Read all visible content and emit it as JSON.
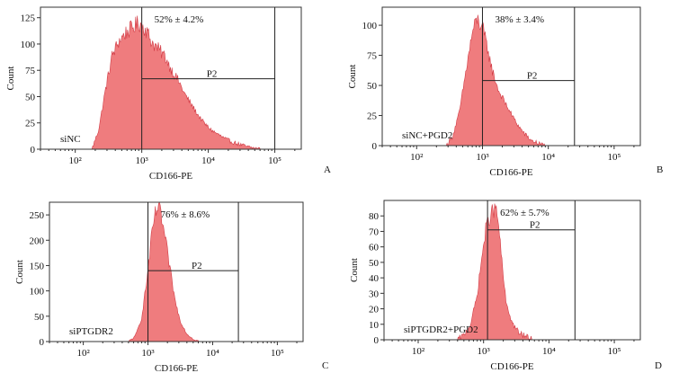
{
  "chart_data": [
    {
      "type": "histogram",
      "panel_label": "A",
      "sample": "siNC",
      "xlabel": "CD166-PE",
      "ylabel": "Count",
      "x_scale": "log",
      "xlim": [
        30,
        250000
      ],
      "ylim": [
        0,
        135
      ],
      "yticks": [
        "0",
        "25",
        "50",
        "75",
        "100",
        "125"
      ],
      "ytick_values": [
        0,
        25,
        50,
        75,
        100,
        125
      ],
      "xticks": [
        "10²",
        "10³",
        "10⁴",
        "10⁵"
      ],
      "xtick_values": [
        100,
        1000,
        10000,
        100000
      ],
      "gate": {
        "name": "P2",
        "from": 1000,
        "to": 100000,
        "bar_count": 67
      },
      "annotation": "52% ± 4.2%",
      "color": "#ef7c7e",
      "series": [
        {
          "log_x": 2.25,
          "count": 0
        },
        {
          "log_x": 2.35,
          "count": 18
        },
        {
          "log_x": 2.45,
          "count": 55
        },
        {
          "log_x": 2.55,
          "count": 88
        },
        {
          "log_x": 2.65,
          "count": 102
        },
        {
          "log_x": 2.75,
          "count": 110
        },
        {
          "log_x": 2.85,
          "count": 115
        },
        {
          "log_x": 2.95,
          "count": 120
        },
        {
          "log_x": 3.05,
          "count": 115
        },
        {
          "log_x": 3.15,
          "count": 102
        },
        {
          "log_x": 3.25,
          "count": 95
        },
        {
          "log_x": 3.35,
          "count": 88
        },
        {
          "log_x": 3.45,
          "count": 75
        },
        {
          "log_x": 3.55,
          "count": 65
        },
        {
          "log_x": 3.65,
          "count": 52
        },
        {
          "log_x": 3.75,
          "count": 42
        },
        {
          "log_x": 3.85,
          "count": 32
        },
        {
          "log_x": 3.95,
          "count": 24
        },
        {
          "log_x": 4.05,
          "count": 18
        },
        {
          "log_x": 4.15,
          "count": 14
        },
        {
          "log_x": 4.25,
          "count": 10
        },
        {
          "log_x": 4.35,
          "count": 7
        },
        {
          "log_x": 4.45,
          "count": 5
        },
        {
          "log_x": 4.6,
          "count": 2
        },
        {
          "log_x": 4.8,
          "count": 0
        }
      ]
    },
    {
      "type": "histogram",
      "panel_label": "B",
      "sample": "siNC+PGD2",
      "xlabel": "CD166-PE",
      "ylabel": "Count",
      "x_scale": "log",
      "xlim": [
        30,
        250000
      ],
      "ylim": [
        0,
        115
      ],
      "yticks": [
        "0",
        "25",
        "50",
        "75",
        "100"
      ],
      "ytick_values": [
        0,
        25,
        50,
        75,
        100
      ],
      "xticks": [
        "10²",
        "10³",
        "10⁴",
        "10⁵"
      ],
      "xtick_values": [
        100,
        1000,
        10000,
        100000
      ],
      "gate": {
        "name": "P2",
        "from": 1000,
        "to": 25000,
        "bar_count": 54
      },
      "annotation": "38% ± 3.4%",
      "color": "#ef7c7e",
      "series": [
        {
          "log_x": 2.45,
          "count": 0
        },
        {
          "log_x": 2.55,
          "count": 8
        },
        {
          "log_x": 2.65,
          "count": 28
        },
        {
          "log_x": 2.75,
          "count": 62
        },
        {
          "log_x": 2.85,
          "count": 95
        },
        {
          "log_x": 2.92,
          "count": 105
        },
        {
          "log_x": 3.0,
          "count": 98
        },
        {
          "log_x": 3.08,
          "count": 80
        },
        {
          "log_x": 3.15,
          "count": 62
        },
        {
          "log_x": 3.25,
          "count": 45
        },
        {
          "log_x": 3.35,
          "count": 35
        },
        {
          "log_x": 3.45,
          "count": 25
        },
        {
          "log_x": 3.55,
          "count": 16
        },
        {
          "log_x": 3.65,
          "count": 9
        },
        {
          "log_x": 3.75,
          "count": 4
        },
        {
          "log_x": 3.85,
          "count": 2
        },
        {
          "log_x": 3.95,
          "count": 0
        }
      ]
    },
    {
      "type": "histogram",
      "panel_label": "C",
      "sample": "siPTGDR2",
      "xlabel": "CD166-PE",
      "ylabel": "Count",
      "x_scale": "log",
      "xlim": [
        30,
        250000
      ],
      "ylim": [
        0,
        275
      ],
      "yticks": [
        "0",
        "50",
        "100",
        "150",
        "200",
        "250"
      ],
      "ytick_values": [
        0,
        50,
        100,
        150,
        200,
        250
      ],
      "xticks": [
        "10²",
        "10³",
        "10⁴",
        "10⁵"
      ],
      "xtick_values": [
        100,
        1000,
        10000,
        100000
      ],
      "gate": {
        "name": "P2",
        "from": 1000,
        "to": 25000,
        "bar_count": 140
      },
      "annotation": "76% ± 8.6%",
      "color": "#ef7c7e",
      "series": [
        {
          "log_x": 2.7,
          "count": 0
        },
        {
          "log_x": 2.8,
          "count": 10
        },
        {
          "log_x": 2.9,
          "count": 45
        },
        {
          "log_x": 2.98,
          "count": 120
        },
        {
          "log_x": 3.05,
          "count": 200
        },
        {
          "log_x": 3.1,
          "count": 245
        },
        {
          "log_x": 3.15,
          "count": 265
        },
        {
          "log_x": 3.2,
          "count": 250
        },
        {
          "log_x": 3.27,
          "count": 200
        },
        {
          "log_x": 3.35,
          "count": 135
        },
        {
          "log_x": 3.42,
          "count": 80
        },
        {
          "log_x": 3.5,
          "count": 40
        },
        {
          "log_x": 3.6,
          "count": 15
        },
        {
          "log_x": 3.7,
          "count": 5
        },
        {
          "log_x": 3.8,
          "count": 0
        }
      ]
    },
    {
      "type": "histogram",
      "panel_label": "D",
      "sample": "siPTGDR2+PGD2",
      "xlabel": "CD166-PE",
      "ylabel": "Count",
      "x_scale": "log",
      "xlim": [
        30,
        250000
      ],
      "ylim": [
        0,
        90
      ],
      "yticks": [
        "0",
        "10",
        "20",
        "30",
        "40",
        "50",
        "60",
        "70",
        "80"
      ],
      "ytick_values": [
        0,
        10,
        20,
        30,
        40,
        50,
        60,
        70,
        80
      ],
      "xticks": [
        "10²",
        "10³",
        "10⁴",
        "10⁵"
      ],
      "xtick_values": [
        100,
        1000,
        10000,
        100000
      ],
      "gate": {
        "name": "P2",
        "from": 1150,
        "to": 25000,
        "bar_count": 71
      },
      "annotation": "62% ± 5.7%",
      "color": "#ef7c7e",
      "series": [
        {
          "log_x": 2.6,
          "count": 0
        },
        {
          "log_x": 2.7,
          "count": 3
        },
        {
          "log_x": 2.8,
          "count": 10
        },
        {
          "log_x": 2.9,
          "count": 28
        },
        {
          "log_x": 2.97,
          "count": 52
        },
        {
          "log_x": 3.03,
          "count": 70
        },
        {
          "log_x": 3.08,
          "count": 78
        },
        {
          "log_x": 3.13,
          "count": 82
        },
        {
          "log_x": 3.18,
          "count": 85
        },
        {
          "log_x": 3.23,
          "count": 75
        },
        {
          "log_x": 3.28,
          "count": 50
        },
        {
          "log_x": 3.35,
          "count": 22
        },
        {
          "log_x": 3.45,
          "count": 10
        },
        {
          "log_x": 3.55,
          "count": 4
        },
        {
          "log_x": 3.65,
          "count": 2
        },
        {
          "log_x": 3.75,
          "count": 0
        }
      ]
    }
  ]
}
